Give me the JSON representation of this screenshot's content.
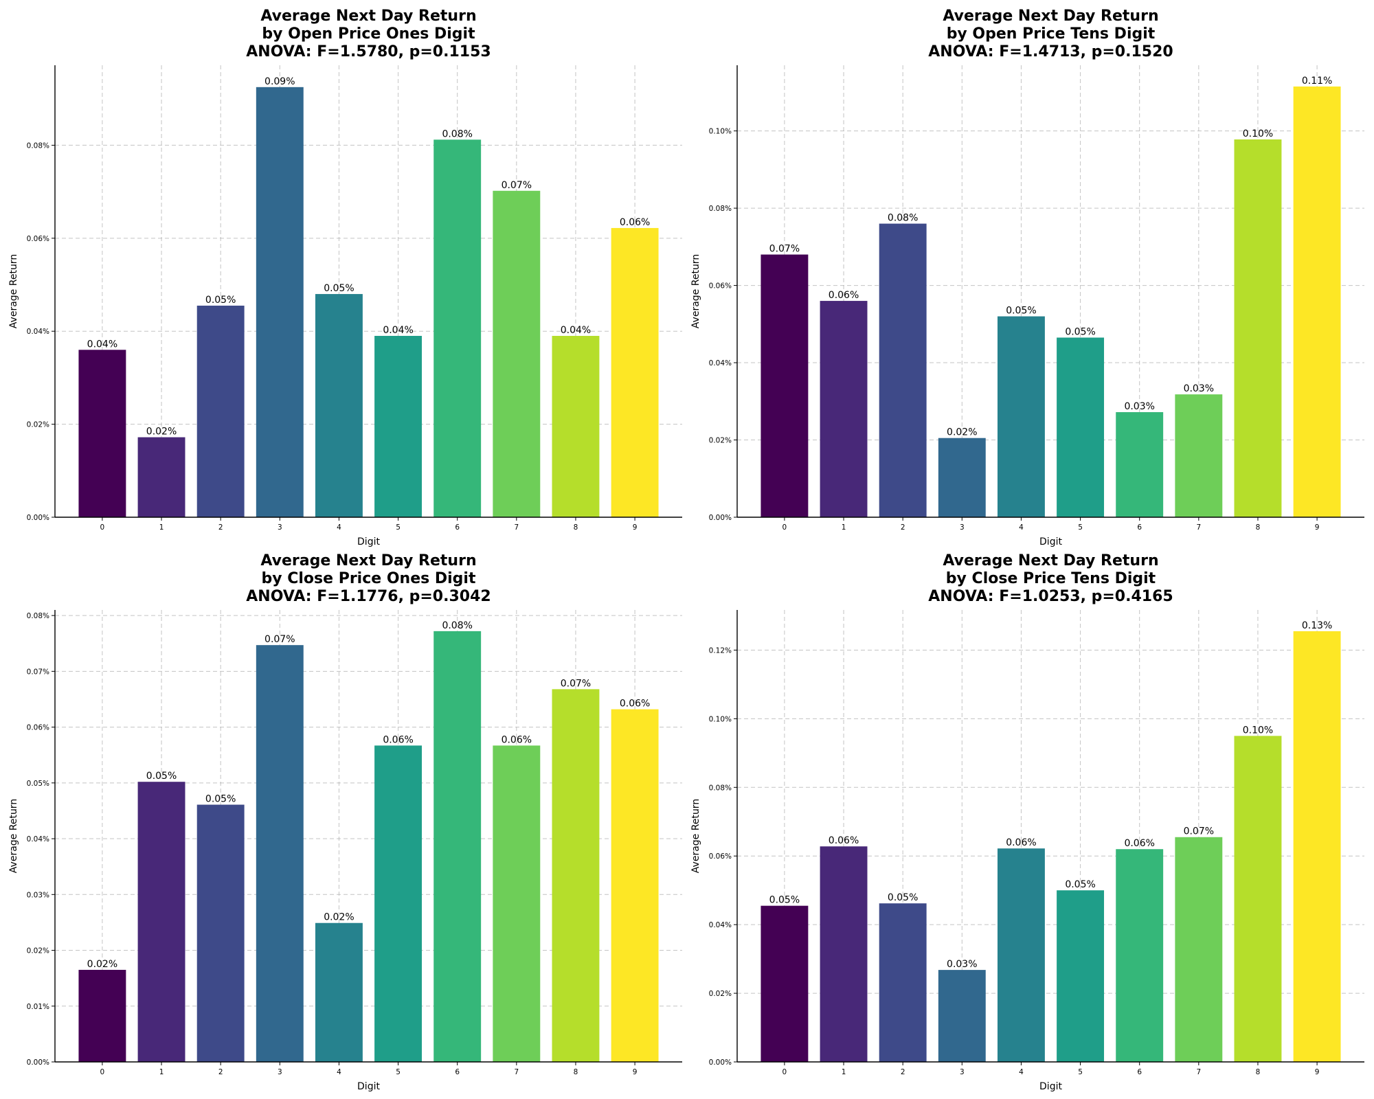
{
  "palette": [
    "#440154",
    "#482878",
    "#3e4a89",
    "#31688e",
    "#26828e",
    "#1f9e89",
    "#35b779",
    "#6ece58",
    "#b5de2b",
    "#fde725"
  ],
  "chart_data": [
    {
      "type": "bar",
      "title_lines": [
        "Average Next Day Return",
        "by Open Price Ones Digit",
        "ANOVA: F=1.5780, p=0.1153"
      ],
      "xlabel": "Digit",
      "ylabel": "Average Return",
      "categories": [
        "0",
        "1",
        "2",
        "3",
        "4",
        "5",
        "6",
        "7",
        "8",
        "9"
      ],
      "values": [
        0.036,
        0.0172,
        0.0455,
        0.0925,
        0.048,
        0.039,
        0.0812,
        0.0702,
        0.039,
        0.0622
      ],
      "data_labels": [
        "0.04%",
        "0.02%",
        "0.05%",
        "0.09%",
        "0.05%",
        "0.04%",
        "0.08%",
        "0.07%",
        "0.04%",
        "0.06%"
      ],
      "ylim": [
        0,
        0.0972
      ],
      "yticks": [
        0,
        0.02,
        0.04,
        0.06,
        0.08
      ],
      "ytick_labels": [
        "0.00%",
        "0.02%",
        "0.04%",
        "0.06%",
        "0.08%"
      ],
      "grid": true
    },
    {
      "type": "bar",
      "title_lines": [
        "Average Next Day Return",
        "by Open Price Tens Digit",
        "ANOVA: F=1.4713, p=0.1520"
      ],
      "xlabel": "Digit",
      "ylabel": "Average Return",
      "categories": [
        "0",
        "1",
        "2",
        "3",
        "4",
        "5",
        "6",
        "7",
        "8",
        "9"
      ],
      "values": [
        0.068,
        0.056,
        0.076,
        0.0205,
        0.052,
        0.0465,
        0.0272,
        0.0318,
        0.0978,
        0.1115
      ],
      "data_labels": [
        "0.07%",
        "0.06%",
        "0.08%",
        "0.02%",
        "0.05%",
        "0.05%",
        "0.03%",
        "0.03%",
        "0.10%",
        "0.11%"
      ],
      "ylim": [
        0,
        0.117
      ],
      "yticks": [
        0,
        0.02,
        0.04,
        0.06,
        0.08,
        0.1
      ],
      "ytick_labels": [
        "0.00%",
        "0.02%",
        "0.04%",
        "0.06%",
        "0.08%",
        "0.10%"
      ],
      "grid": true
    },
    {
      "type": "bar",
      "title_lines": [
        "Average Next Day Return",
        "by Close Price Ones Digit",
        "ANOVA: F=1.1776, p=0.3042"
      ],
      "xlabel": "Digit",
      "ylabel": "Average Return",
      "categories": [
        "0",
        "1",
        "2",
        "3",
        "4",
        "5",
        "6",
        "7",
        "8",
        "9"
      ],
      "values": [
        0.0165,
        0.0502,
        0.0461,
        0.0747,
        0.0249,
        0.0567,
        0.0772,
        0.0567,
        0.0668,
        0.0632
      ],
      "data_labels": [
        "0.02%",
        "0.05%",
        "0.05%",
        "0.07%",
        "0.02%",
        "0.06%",
        "0.08%",
        "0.06%",
        "0.07%",
        "0.06%"
      ],
      "ylim": [
        0,
        0.081
      ],
      "yticks": [
        0,
        0.01,
        0.02,
        0.03,
        0.04,
        0.05,
        0.06,
        0.07,
        0.08
      ],
      "ytick_labels": [
        "0.00%",
        "0.01%",
        "0.02%",
        "0.03%",
        "0.04%",
        "0.05%",
        "0.06%",
        "0.07%",
        "0.08%"
      ],
      "grid": true
    },
    {
      "type": "bar",
      "title_lines": [
        "Average Next Day Return",
        "by Close Price Tens Digit",
        "ANOVA: F=1.0253, p=0.4165"
      ],
      "xlabel": "Digit",
      "ylabel": "Average Return",
      "categories": [
        "0",
        "1",
        "2",
        "3",
        "4",
        "5",
        "6",
        "7",
        "8",
        "9"
      ],
      "values": [
        0.0455,
        0.0628,
        0.0462,
        0.0268,
        0.0622,
        0.05,
        0.062,
        0.0655,
        0.095,
        0.1255
      ],
      "data_labels": [
        "0.05%",
        "0.06%",
        "0.05%",
        "0.03%",
        "0.06%",
        "0.05%",
        "0.06%",
        "0.07%",
        "0.10%",
        "0.13%"
      ],
      "ylim": [
        0,
        0.1317
      ],
      "yticks": [
        0,
        0.02,
        0.04,
        0.06,
        0.08,
        0.1,
        0.12
      ],
      "ytick_labels": [
        "0.00%",
        "0.02%",
        "0.04%",
        "0.06%",
        "0.08%",
        "0.10%",
        "0.12%"
      ],
      "grid": true
    }
  ]
}
